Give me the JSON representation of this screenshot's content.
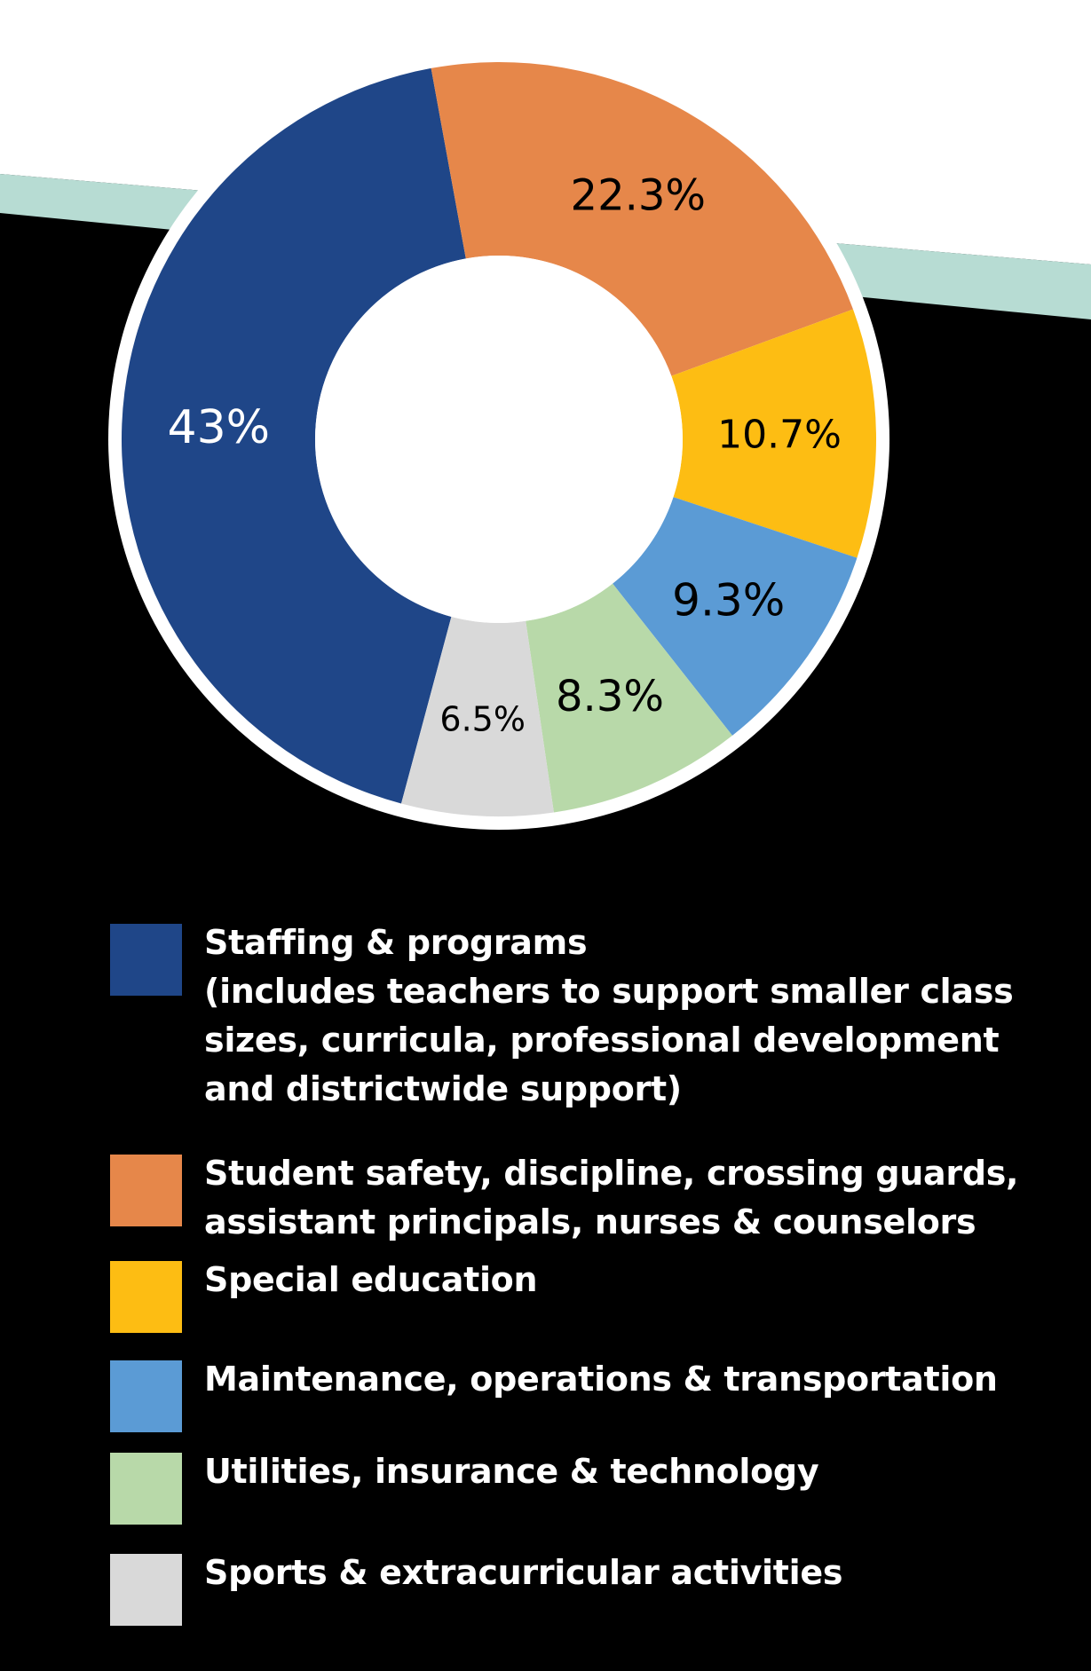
{
  "chart_data": {
    "type": "pie",
    "donut": true,
    "title": "",
    "slices": [
      {
        "value": 43,
        "label": "43%",
        "legend_lines": [
          "Staffing & programs",
          "(includes teachers to support smaller class",
          "sizes, curricula, professional development",
          "and districtwide support)"
        ],
        "color": "#1f4688",
        "label_color": "#ffffff"
      },
      {
        "value": 22.3,
        "label": "22.3%",
        "legend_lines": [
          "Student safety, discipline, crossing guards,",
          "assistant principals, nurses & counselors"
        ],
        "color": "#e6874a",
        "label_color": "#000000"
      },
      {
        "value": 10.7,
        "label": "10.7%",
        "legend_lines": [
          "Special education"
        ],
        "color": "#fdbd13",
        "label_color": "#000000"
      },
      {
        "value": 9.3,
        "label": "9.3%",
        "legend_lines": [
          "Maintenance, operations & transportation"
        ],
        "color": "#5b9bd5",
        "label_color": "#000000"
      },
      {
        "value": 8.3,
        "label": "8.3%",
        "legend_lines": [
          "Utilities, insurance & technology"
        ],
        "color": "#b8d9a9",
        "label_color": "#000000"
      },
      {
        "value": 6.5,
        "label": "6.5%",
        "legend_lines": [
          "Sports & extracurricular activities"
        ],
        "color": "#d9d9d9",
        "label_color": "#000000"
      }
    ],
    "start_angle_deg": 195,
    "legend_position": "bottom"
  },
  "colors": {
    "background": "#000000",
    "upper_background": "#ffffff",
    "accent_band": "#b7dcd3",
    "ring_outline": "#ffffff",
    "donut_hole": "#ffffff"
  }
}
